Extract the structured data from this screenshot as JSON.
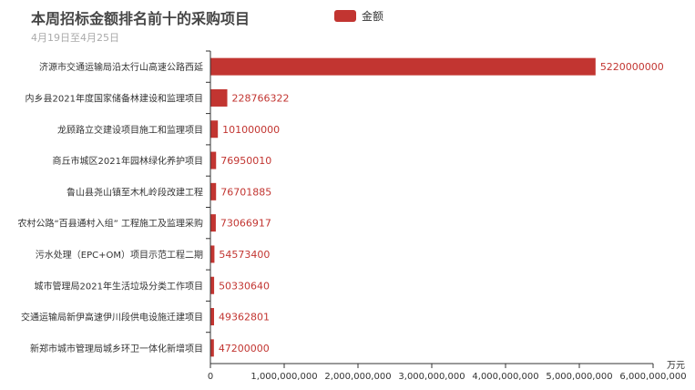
{
  "chart_data": {
    "type": "bar",
    "orientation": "horizontal",
    "title": "本周招标金额排名前十的采购项目",
    "subtitle": "4月19日至4月25日",
    "categories": [
      "济源市交通运输局沿太行山高速公路西延",
      "内乡县2021年度国家储备林建设和监理项目",
      "龙顾路立交建设项目施工和监理项目",
      "商丘市城区2021年园林绿化养护项目",
      "鲁山县尧山镇至木札岭段改建工程",
      "农村公路“百县通村入组” 工程施工及监理采购",
      "污水处理（EPC+OM）项目示范工程二期",
      "城市管理局2021年生活垃圾分类工作项目",
      "交通运输局新伊高速伊川段供电设施迁建项目",
      "新郑市城市管理局城乡环卫一体化新增项目"
    ],
    "series": [
      {
        "name": "金额",
        "values": [
          5220000000,
          228766322,
          101000000,
          76950010,
          76701885,
          73066917,
          54573400,
          50330640,
          49362801,
          47200000
        ]
      }
    ],
    "value_labels": [
      "5220000000",
      "228766322",
      "101000000",
      "76950010",
      "76701885",
      "73066917",
      "54573400",
      "50330640",
      "49362801",
      "47200000"
    ],
    "xlim": [
      0,
      6000000000
    ],
    "x_ticks": [
      0,
      1000000000,
      2000000000,
      3000000000,
      4000000000,
      5000000000,
      6000000000
    ],
    "x_tick_labels": [
      "0",
      "1,000,000,000",
      "2,000,000,000",
      "3,000,000,000",
      "4,000,000,000",
      "5,000,000,000",
      "6,000,000,000"
    ],
    "xlabel": "万元",
    "legend_position": "top",
    "bar_color": "#c23531",
    "grid": false
  }
}
